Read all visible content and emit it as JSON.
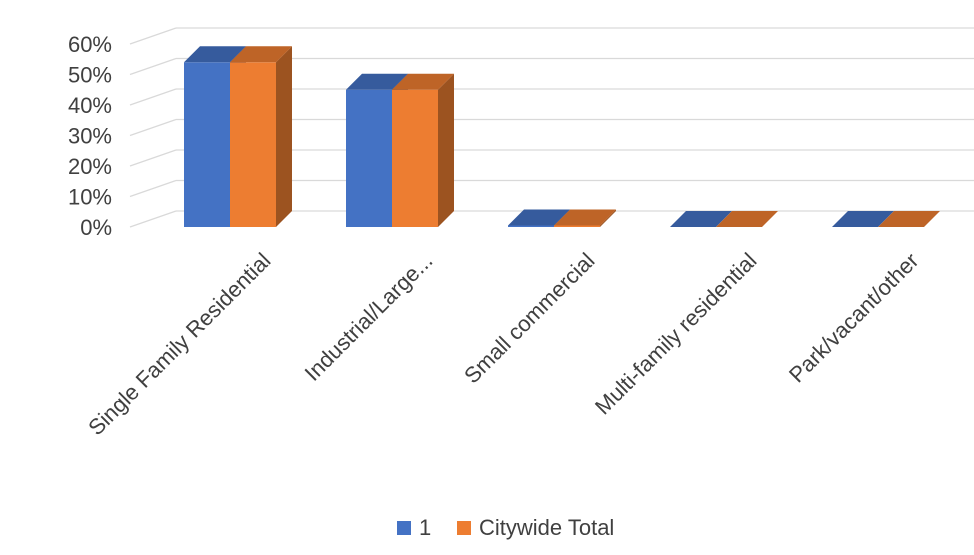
{
  "chart_data": {
    "type": "bar",
    "title": "",
    "xlabel": "",
    "ylabel": "",
    "categories": [
      "Single Family Residential",
      "Industrial/Large...",
      "Small commercial",
      "Multi-family residential",
      "Park/vacant/other"
    ],
    "series": [
      {
        "name": "1",
        "values": [
          0.54,
          0.45,
          0.005,
          0,
          0
        ],
        "color": "#4472C4"
      },
      {
        "name": "Citywide Total",
        "values": [
          0.54,
          0.45,
          0.005,
          0,
          0
        ],
        "color": "#ED7D31"
      }
    ],
    "ylim": [
      0,
      0.6
    ],
    "yticks": [
      "0%",
      "10%",
      "20%",
      "30%",
      "40%",
      "50%",
      "60%"
    ],
    "grid": true,
    "legend_position": "bottom",
    "style": "3d-clustered-column"
  }
}
